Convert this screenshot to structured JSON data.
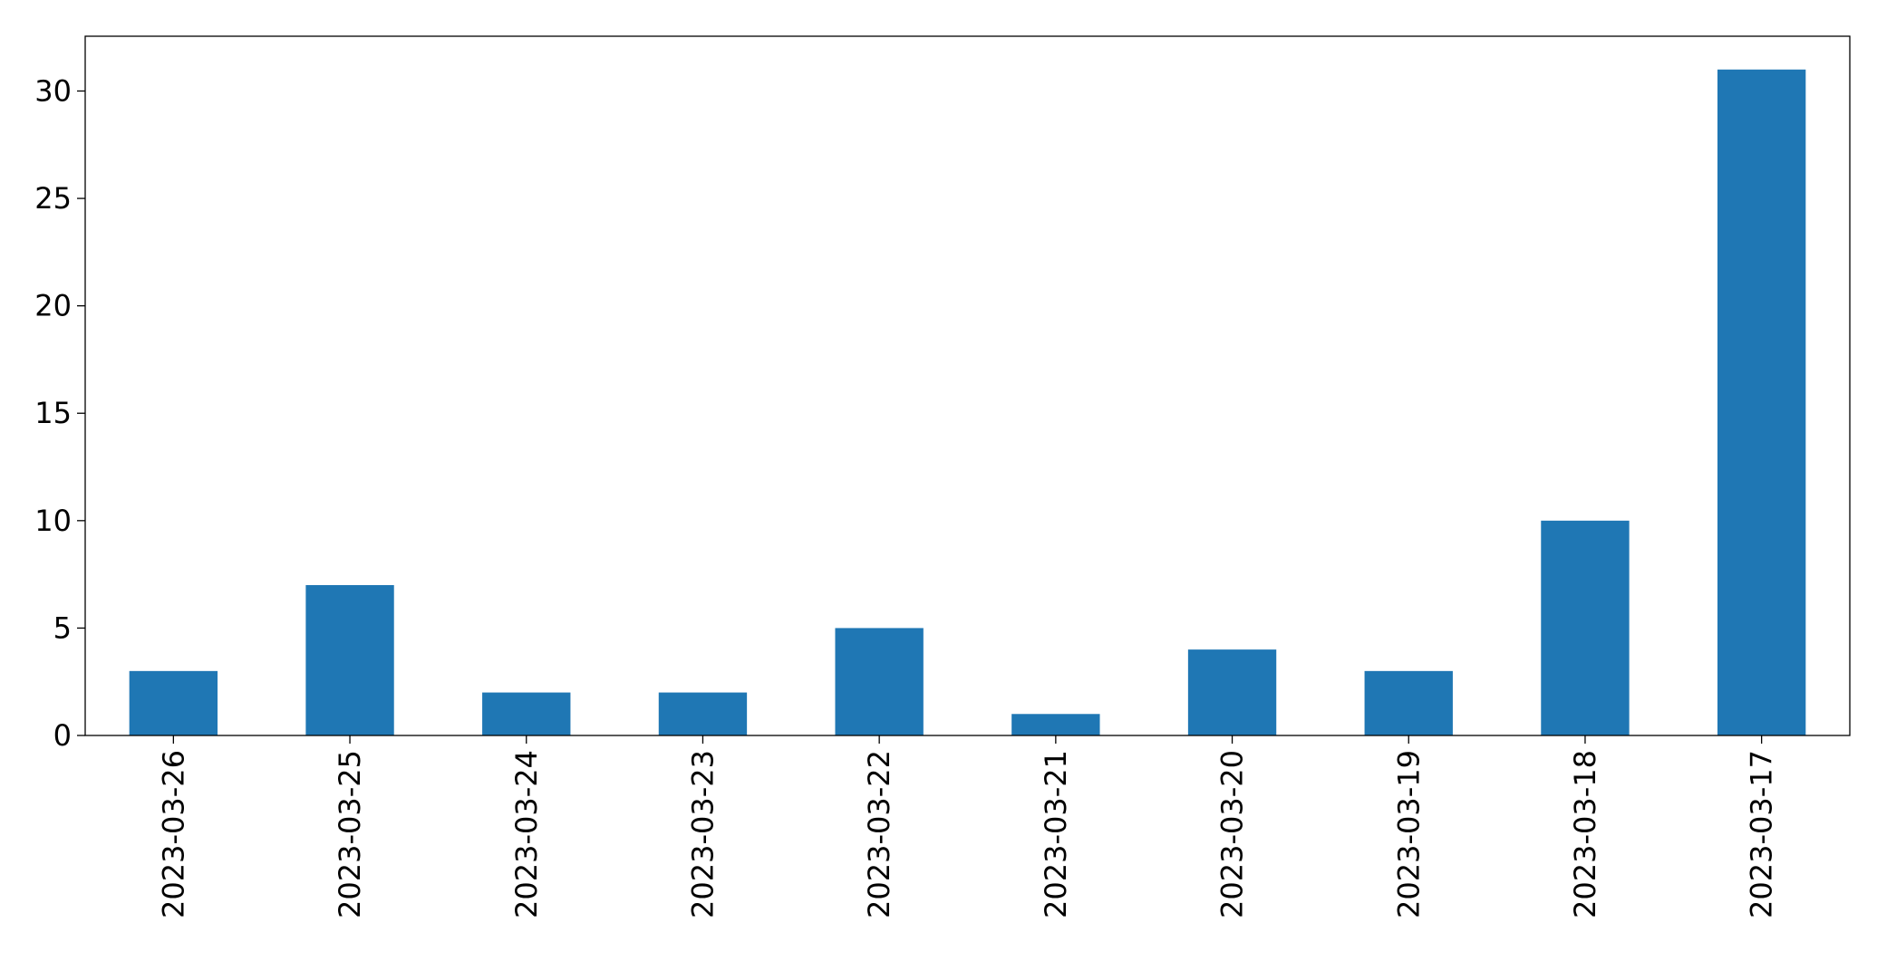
{
  "chart_data": {
    "type": "bar",
    "categories": [
      "2023-03-26",
      "2023-03-25",
      "2023-03-24",
      "2023-03-23",
      "2023-03-22",
      "2023-03-21",
      "2023-03-20",
      "2023-03-19",
      "2023-03-18",
      "2023-03-17"
    ],
    "values": [
      3,
      7,
      2,
      2,
      5,
      1,
      4,
      3,
      10,
      31
    ],
    "color": "#1f77b4",
    "ylim": [
      0,
      32.55
    ],
    "yticks": [
      0,
      5,
      10,
      15,
      20,
      25,
      30
    ],
    "grid": false
  }
}
